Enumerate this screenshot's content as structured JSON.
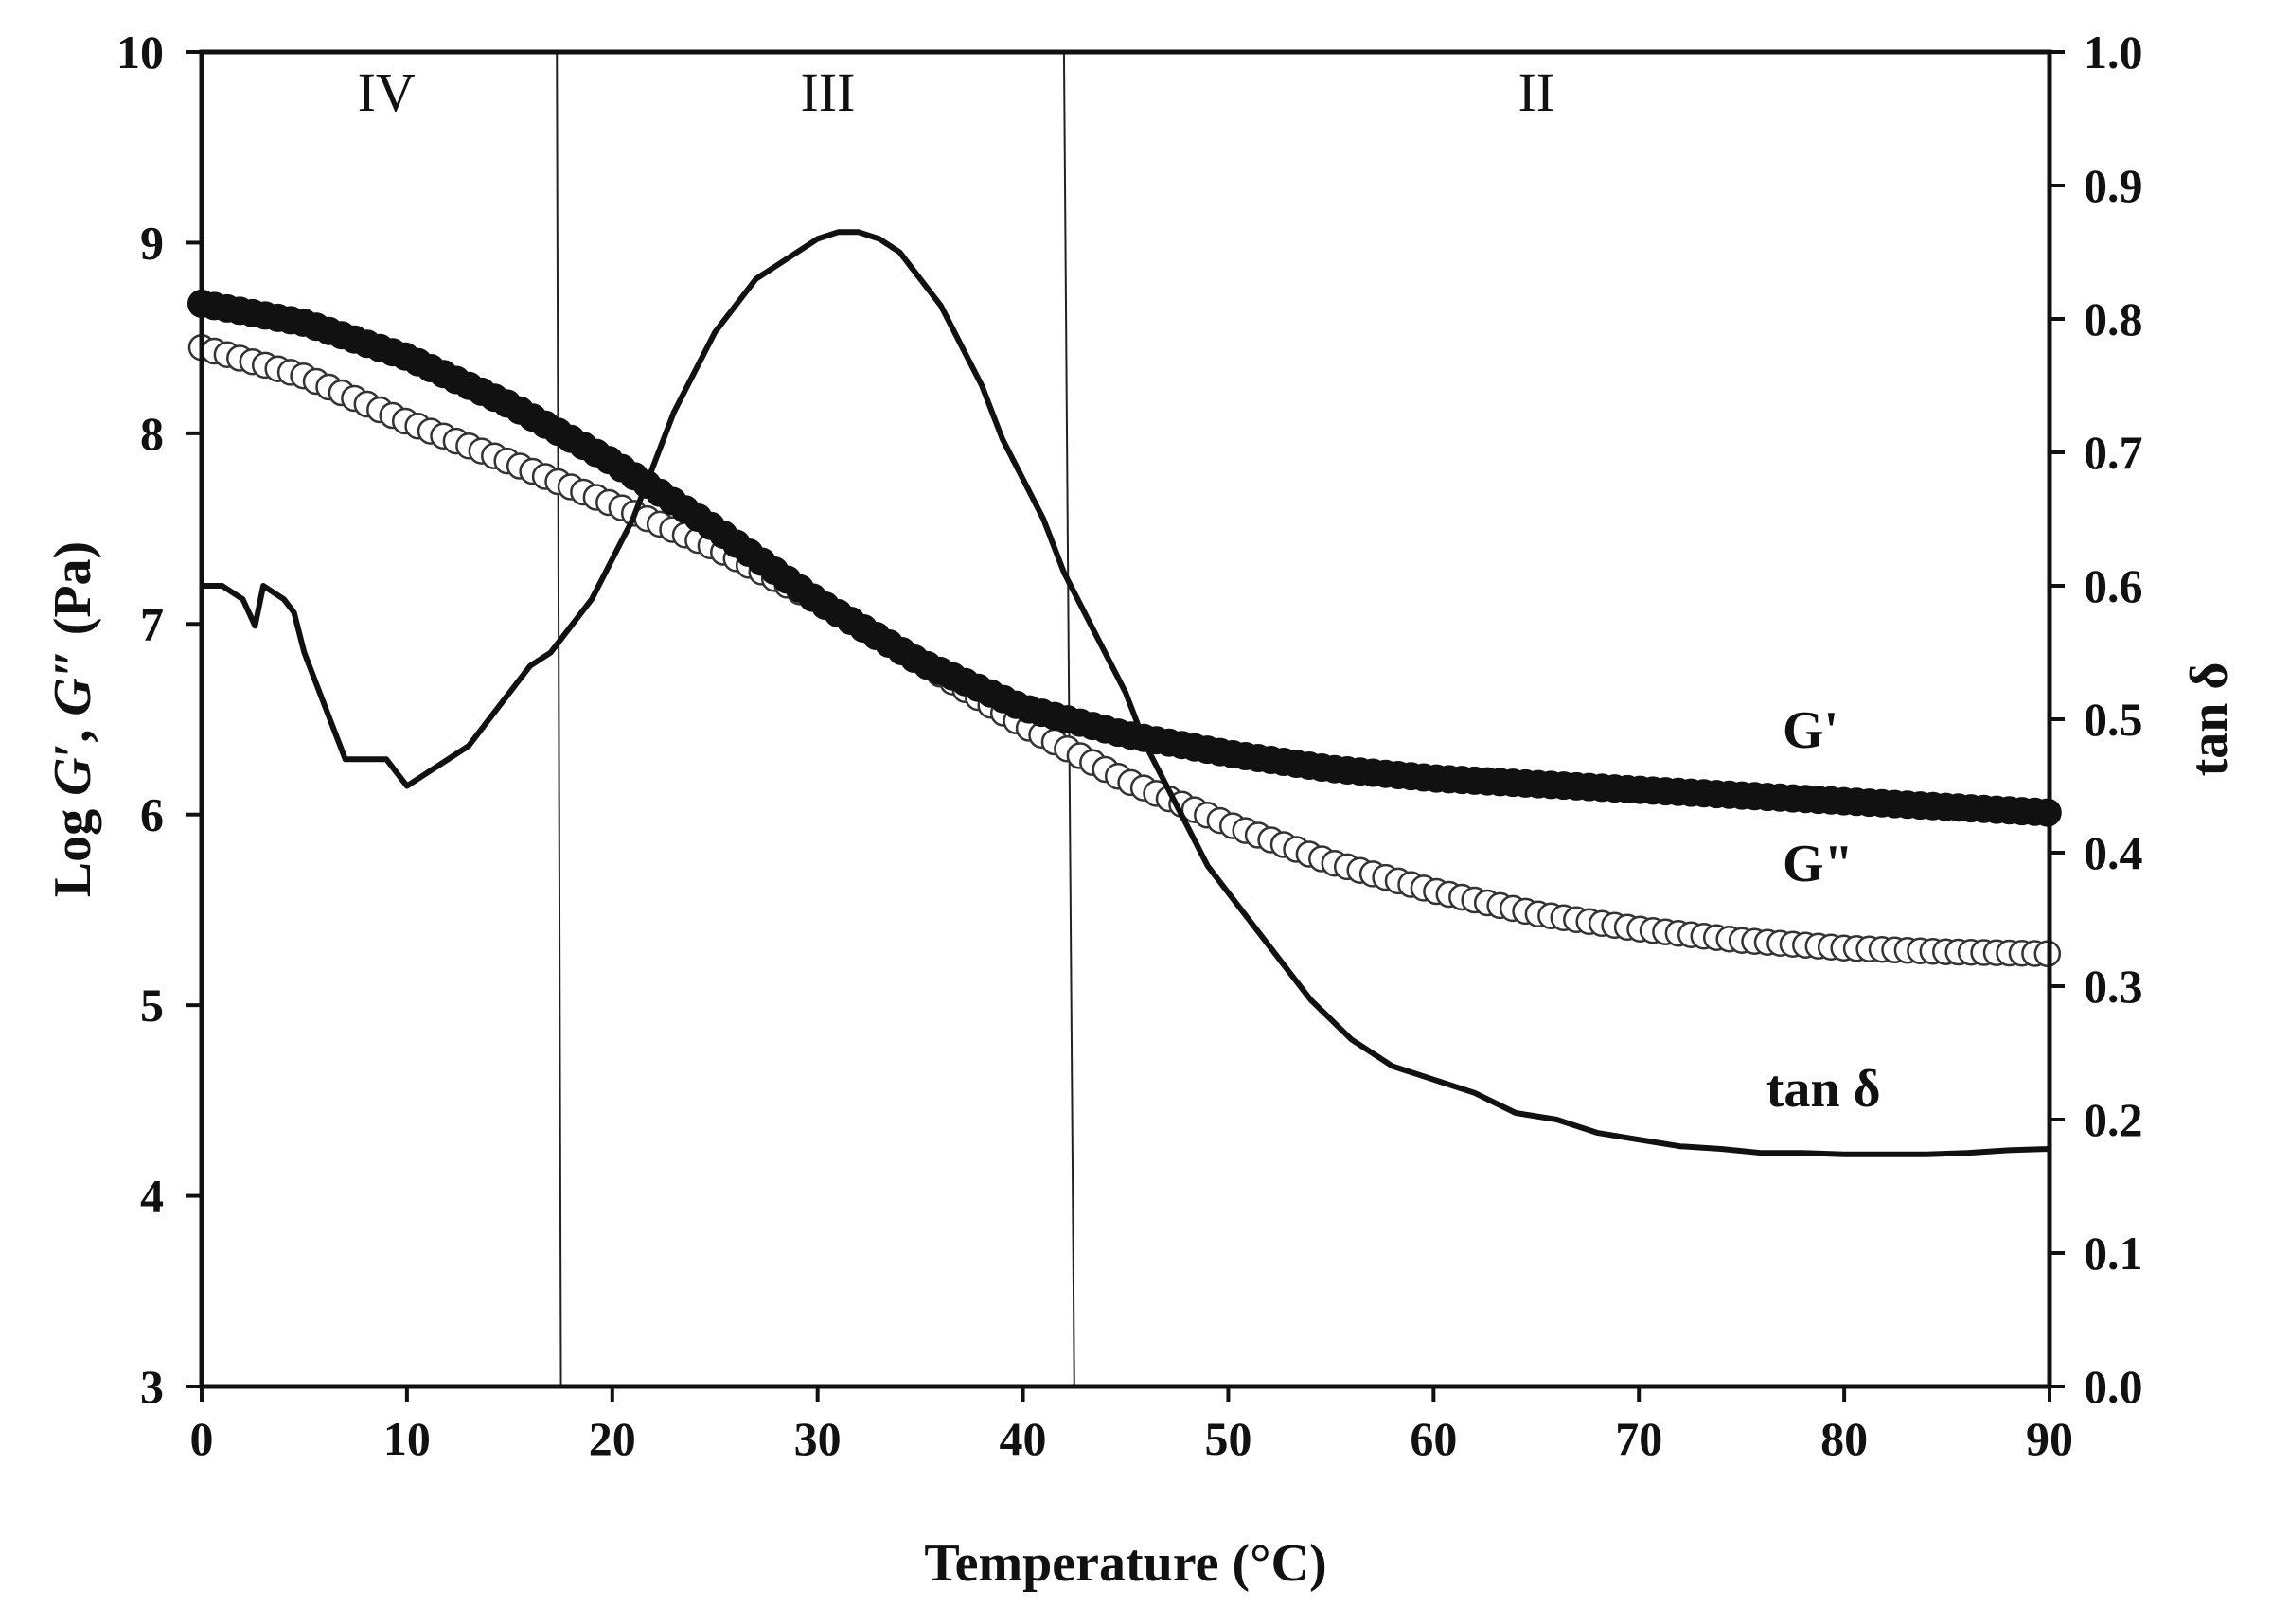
{
  "chart_data": {
    "type": "line",
    "title": "",
    "xlabel": "Temperature (°C)",
    "ylabel_left": {
      "prefix": "Log ",
      "g1": "G",
      "mid": "′, ",
      "g2": "G",
      "suffix": "″ (Pa)"
    },
    "ylabel_right": "tan δ",
    "xlim": [
      0,
      90
    ],
    "ylim_left": [
      3,
      10
    ],
    "ylim_right": [
      0.0,
      1.0
    ],
    "x_ticks": [
      "0",
      "10",
      "20",
      "30",
      "40",
      "50",
      "60",
      "70",
      "80",
      "90"
    ],
    "y_left_ticks": [
      "3",
      "4",
      "5",
      "6",
      "7",
      "8",
      "9",
      "10"
    ],
    "y_right_ticks": [
      "0.0",
      "0.1",
      "0.2",
      "0.3",
      "0.4",
      "0.5",
      "0.6",
      "0.7",
      "0.8",
      "0.9",
      "1.0"
    ],
    "regions": [
      {
        "label": "IV",
        "x_center": 9
      },
      {
        "label": "III",
        "x_center": 30.5
      },
      {
        "label": "II",
        "x_center": 65
      }
    ],
    "region_dividers": [
      {
        "x_top": 17.3,
        "x_bottom": 17.5
      },
      {
        "x_top": 42.0,
        "x_bottom": 42.5
      }
    ],
    "series": [
      {
        "name": "G'",
        "label": "G'",
        "axis": "left",
        "marker": "filled-circle",
        "label_pos": {
          "x": 77,
          "y": 6.35
        },
        "x": [
          0,
          5,
          10,
          15,
          20,
          25,
          30,
          35,
          40,
          45,
          50,
          55,
          60,
          65,
          70,
          75,
          80,
          85,
          90
        ],
        "values": [
          8.68,
          8.58,
          8.4,
          8.15,
          7.85,
          7.5,
          7.12,
          6.8,
          6.56,
          6.42,
          6.32,
          6.24,
          6.19,
          6.16,
          6.13,
          6.1,
          6.07,
          6.04,
          6.01
        ]
      },
      {
        "name": "G\"",
        "label": "G\"",
        "axis": "left",
        "marker": "open-circle",
        "label_pos": {
          "x": 77,
          "y": 5.65
        },
        "x": [
          0,
          5,
          10,
          15,
          20,
          25,
          30,
          35,
          40,
          45,
          50,
          55,
          60,
          65,
          70,
          75,
          80,
          85,
          90
        ],
        "values": [
          8.45,
          8.3,
          8.06,
          7.85,
          7.63,
          7.4,
          7.12,
          6.8,
          6.47,
          6.18,
          5.95,
          5.75,
          5.6,
          5.48,
          5.4,
          5.34,
          5.3,
          5.28,
          5.27
        ]
      },
      {
        "name": "tan δ",
        "label": "tan δ",
        "axis": "right",
        "marker": "none",
        "label_pos": {
          "x": 76.2,
          "y": 0.21
        },
        "x": [
          0,
          1,
          2,
          2.6,
          3,
          4,
          4.5,
          5,
          6,
          7,
          8,
          9,
          9.5,
          10,
          11,
          12,
          13,
          14,
          15,
          16,
          17,
          18,
          19,
          20,
          21,
          22,
          23,
          24,
          25,
          26,
          27,
          28,
          29,
          30,
          31,
          32,
          33,
          34,
          35,
          36,
          37,
          38,
          39,
          40,
          41,
          42,
          43,
          44,
          45,
          46,
          47,
          48,
          49,
          50,
          52,
          54,
          56,
          58,
          60,
          62,
          64,
          66,
          68,
          70,
          72,
          74,
          76,
          78,
          80,
          82,
          84,
          86,
          88,
          90
        ],
        "values": [
          0.6,
          0.6,
          0.59,
          0.57,
          0.6,
          0.59,
          0.58,
          0.55,
          0.51,
          0.47,
          0.47,
          0.47,
          0.46,
          0.45,
          0.46,
          0.47,
          0.48,
          0.5,
          0.52,
          0.54,
          0.55,
          0.57,
          0.59,
          0.62,
          0.65,
          0.69,
          0.73,
          0.76,
          0.79,
          0.81,
          0.83,
          0.84,
          0.85,
          0.86,
          0.865,
          0.865,
          0.86,
          0.85,
          0.83,
          0.81,
          0.78,
          0.75,
          0.71,
          0.68,
          0.65,
          0.61,
          0.58,
          0.55,
          0.52,
          0.48,
          0.45,
          0.42,
          0.39,
          0.37,
          0.33,
          0.29,
          0.26,
          0.24,
          0.23,
          0.22,
          0.205,
          0.2,
          0.19,
          0.185,
          0.18,
          0.178,
          0.175,
          0.175,
          0.174,
          0.174,
          0.174,
          0.175,
          0.177,
          0.178
        ]
      }
    ]
  }
}
